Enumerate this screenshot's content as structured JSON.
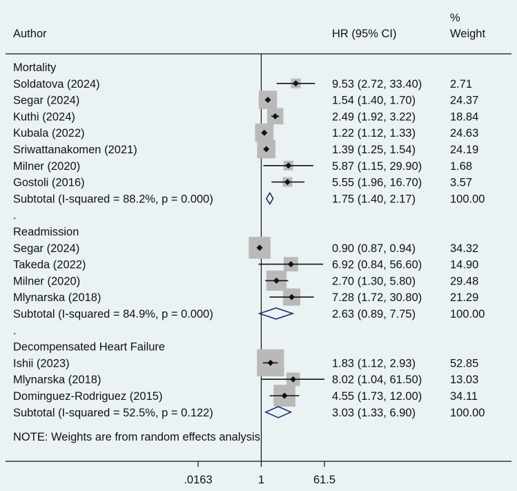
{
  "chart_data": {
    "type": "forest",
    "headers": {
      "author": "Author",
      "ci": "HR (95% CI)",
      "weight_line1": "%",
      "weight_line2": "Weight"
    },
    "axis": {
      "scale": "log",
      "null_value": 1,
      "range": [
        0.0163,
        61.5
      ],
      "ticks": [
        {
          "value": 0.0163,
          "label": ".0163"
        },
        {
          "value": 1,
          "label": "1"
        },
        {
          "value": 61.5,
          "label": "61.5"
        }
      ]
    },
    "rows": [
      {
        "type": "group",
        "label": "Mortality"
      },
      {
        "type": "study",
        "label": "Soldatova (2024)",
        "hr": 9.53,
        "lo": 2.72,
        "hi": 33.4,
        "ci_text": "9.53 (2.72, 33.40)",
        "weight": "2.71"
      },
      {
        "type": "study",
        "label": "Segar (2024)",
        "hr": 1.54,
        "lo": 1.4,
        "hi": 1.7,
        "ci_text": "1.54 (1.40, 1.70)",
        "weight": "24.37"
      },
      {
        "type": "study",
        "label": "Kuthi (2024)",
        "hr": 2.49,
        "lo": 1.92,
        "hi": 3.22,
        "ci_text": "2.49 (1.92, 3.22)",
        "weight": "18.84"
      },
      {
        "type": "study",
        "label": "Kubala (2022)",
        "hr": 1.22,
        "lo": 1.12,
        "hi": 1.33,
        "ci_text": "1.22 (1.12, 1.33)",
        "weight": "24.63"
      },
      {
        "type": "study",
        "label": "Sriwattanakomen (2021)",
        "hr": 1.39,
        "lo": 1.25,
        "hi": 1.54,
        "ci_text": "1.39 (1.25, 1.54)",
        "weight": "24.19"
      },
      {
        "type": "study",
        "label": "Milner (2020)",
        "hr": 5.87,
        "lo": 1.15,
        "hi": 29.9,
        "ci_text": "5.87 (1.15, 29.90)",
        "weight": "1.68"
      },
      {
        "type": "study",
        "label": "Gostoli (2016)",
        "hr": 5.55,
        "lo": 1.96,
        "hi": 16.7,
        "ci_text": "5.55 (1.96, 16.70)",
        "weight": "3.57"
      },
      {
        "type": "subtotal",
        "label": "Subtotal  (I-squared = 88.2%, p = 0.000)",
        "hr": 1.75,
        "lo": 1.4,
        "hi": 2.17,
        "ci_text": "1.75 (1.40, 2.17)",
        "weight": "100.00"
      },
      {
        "type": "spacer",
        "label": "."
      },
      {
        "type": "group",
        "label": "Readmission"
      },
      {
        "type": "study",
        "label": "Segar (2024)",
        "hr": 0.9,
        "lo": 0.87,
        "hi": 0.94,
        "ci_text": "0.90 (0.87, 0.94)",
        "weight": "34.32"
      },
      {
        "type": "study",
        "label": "Takeda (2022)",
        "hr": 6.92,
        "lo": 0.84,
        "hi": 56.6,
        "ci_text": "6.92 (0.84, 56.60)",
        "weight": "14.90"
      },
      {
        "type": "study",
        "label": "Milner (2020)",
        "hr": 2.7,
        "lo": 1.3,
        "hi": 5.8,
        "ci_text": "2.70 (1.30, 5.80)",
        "weight": "29.48"
      },
      {
        "type": "study",
        "label": "Mlynarska (2018)",
        "hr": 7.28,
        "lo": 1.72,
        "hi": 30.8,
        "ci_text": "7.28 (1.72, 30.80)",
        "weight": "21.29"
      },
      {
        "type": "subtotal",
        "label": "Subtotal  (I-squared = 84.9%, p = 0.000)",
        "hr": 2.63,
        "lo": 0.89,
        "hi": 7.75,
        "ci_text": "2.63 (0.89, 7.75)",
        "weight": "100.00"
      },
      {
        "type": "spacer",
        "label": "."
      },
      {
        "type": "group",
        "label": "Decompensated Heart Failure"
      },
      {
        "type": "study",
        "label": "Ishii (2023)",
        "hr": 1.83,
        "lo": 1.12,
        "hi": 2.93,
        "ci_text": "1.83 (1.12, 2.93)",
        "weight": "52.85"
      },
      {
        "type": "study",
        "label": "Mlynarska (2018)",
        "hr": 8.02,
        "lo": 1.04,
        "hi": 61.5,
        "ci_text": "8.02 (1.04, 61.50)",
        "weight": "13.03"
      },
      {
        "type": "study",
        "label": "Dominguez-Rodriguez (2015)",
        "hr": 4.55,
        "lo": 1.73,
        "hi": 12.0,
        "ci_text": "4.55 (1.73, 12.00)",
        "weight": "34.11"
      },
      {
        "type": "subtotal",
        "label": "Subtotal  (I-squared = 52.5%, p = 0.122)",
        "hr": 3.03,
        "lo": 1.33,
        "hi": 6.9,
        "ci_text": "3.03 (1.33, 6.90)",
        "weight": "100.00"
      }
    ],
    "note": "NOTE: Weights are from random effects analysis",
    "colors": {
      "background": "#eaf2f3",
      "box": "#b9b9b9",
      "diamond": "#1b2a6b",
      "line": "#111111"
    }
  }
}
